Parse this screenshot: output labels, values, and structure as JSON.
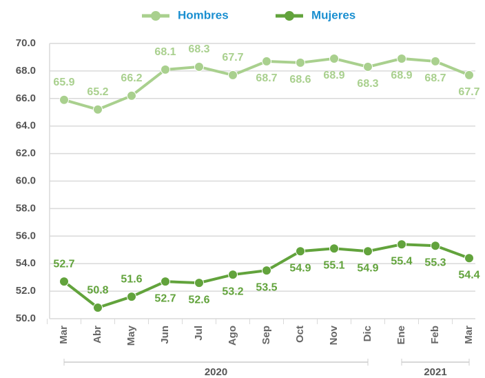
{
  "chart_data": {
    "type": "line",
    "categories": [
      "Mar",
      "Abr",
      "May",
      "Jun",
      "Jul",
      "Ago",
      "Sep",
      "Oct",
      "Nov",
      "Dic",
      "Ene",
      "Feb",
      "Mar"
    ],
    "x_groups": [
      "2020",
      "2021"
    ],
    "series": [
      {
        "name": "Hombres",
        "color": "#a9d08e",
        "values": [
          65.9,
          65.2,
          66.2,
          68.1,
          68.3,
          67.7,
          68.7,
          68.6,
          68.9,
          68.3,
          68.9,
          68.7,
          67.7
        ]
      },
      {
        "name": "Mujeres",
        "color": "#62a33c",
        "values": [
          52.7,
          50.8,
          51.6,
          52.7,
          52.6,
          53.2,
          53.5,
          54.9,
          55.1,
          54.9,
          55.4,
          55.3,
          54.4
        ]
      }
    ],
    "ylim": [
      50,
      70
    ],
    "yticks": [
      {
        "value": 50,
        "label": "50.0"
      },
      {
        "value": 52,
        "label": "52.0"
      },
      {
        "value": 54,
        "label": "54.0"
      },
      {
        "value": 56,
        "label": "56.0"
      },
      {
        "value": 58,
        "label": "58.0"
      },
      {
        "value": 60,
        "label": "60.0"
      },
      {
        "value": 62,
        "label": "62.0"
      },
      {
        "value": 64,
        "label": "64.0"
      },
      {
        "value": 66,
        "label": "66.0"
      },
      {
        "value": 68,
        "label": "68.0"
      },
      {
        "value": 70,
        "label": "70.0"
      }
    ],
    "grid": true,
    "legend": "top"
  }
}
